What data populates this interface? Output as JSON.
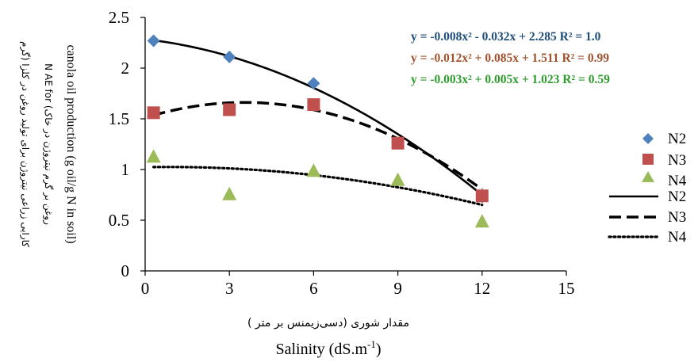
{
  "chart_data": {
    "type": "scatter",
    "xlabel_fa": "مقدار شوری (دسی‌زیمنس بر متر )",
    "xlabel_en": "Salinity (dS.m",
    "xlabel_en_sup": "-1",
    "xlabel_en_end": ")",
    "ylabel_lines": [
      "کارایی زراعی نیتروژن برای تولید روغن در کلزا (گرم",
      "روغن بر گرم نیتروژن در خاک) N AE  for",
      "canola oil production (g oil/g N in soil)"
    ],
    "xlim": [
      0,
      15
    ],
    "ylim": [
      0,
      2.5
    ],
    "x_ticks": [
      "0",
      "3",
      "6",
      "9",
      "12",
      "15"
    ],
    "y_ticks": [
      "0",
      "0.5",
      "1",
      "1.5",
      "2",
      "2.5"
    ],
    "grid": false,
    "legend_position": "right",
    "series": [
      {
        "name": "N2",
        "marker": "diamond",
        "color": "#4F81BD",
        "x": [
          0.3,
          3,
          6,
          9,
          12
        ],
        "y": [
          2.27,
          2.11,
          1.85,
          1.26,
          0.73
        ]
      },
      {
        "name": "N3",
        "marker": "square",
        "color": "#C0504D",
        "x": [
          0.3,
          3,
          6,
          9,
          12
        ],
        "y": [
          1.56,
          1.59,
          1.64,
          1.26,
          0.74
        ]
      },
      {
        "name": "N4",
        "marker": "triangle",
        "color": "#9BBB59",
        "x": [
          0.3,
          3,
          6,
          9,
          12
        ],
        "y": [
          1.13,
          0.76,
          0.99,
          0.9,
          0.49
        ]
      }
    ],
    "trendlines": [
      {
        "name": "N2",
        "style": "solid",
        "a": -0.008,
        "b": -0.032,
        "c": 2.285,
        "equation": "y = -0.008x² - 0.032x + 2.285  R² = 1.0",
        "color": "#1F4E79"
      },
      {
        "name": "N3",
        "style": "dashed",
        "a": -0.012,
        "b": 0.085,
        "c": 1.511,
        "equation": "y = -0.012x² + 0.085x + 1.511  R² = 0.99",
        "color": "#A0522D"
      },
      {
        "name": "N4",
        "style": "dotted",
        "a": -0.003,
        "b": 0.005,
        "c": 1.023,
        "equation": "y = -0.003x² + 0.005x + 1.023  R² = 0.59",
        "color": "#2E9B2E"
      }
    ],
    "trend_x_range": [
      0.3,
      12
    ]
  }
}
